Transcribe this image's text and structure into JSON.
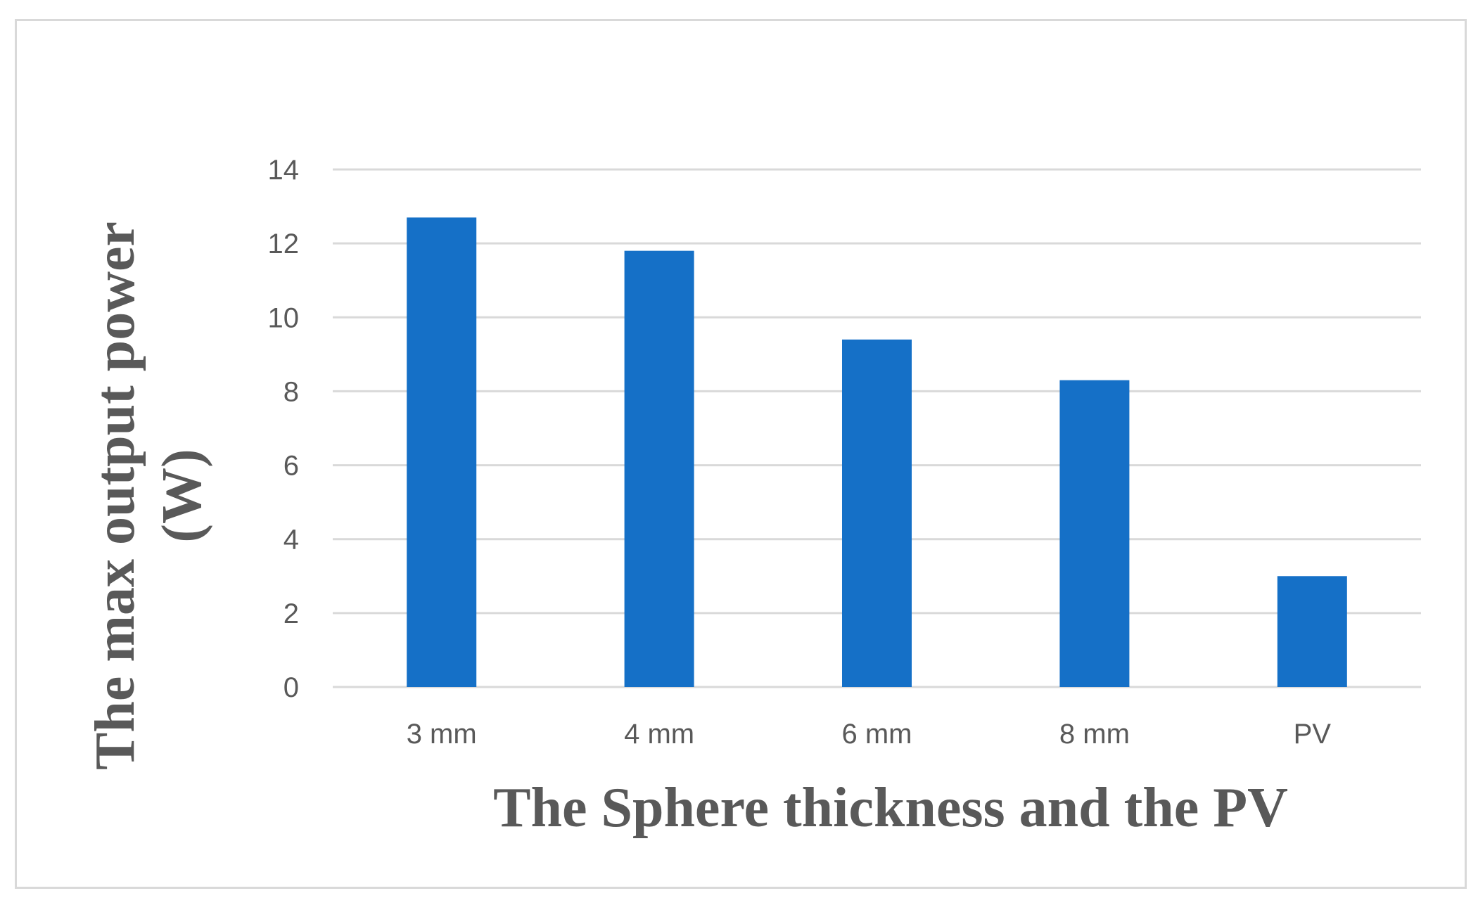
{
  "chart_data": {
    "type": "bar",
    "categories": [
      "3 mm",
      "4 mm",
      "6 mm",
      "8 mm",
      "PV"
    ],
    "values": [
      12.7,
      11.8,
      9.4,
      8.3,
      3.0
    ],
    "xlabel": "The Sphere thickness and the PV",
    "ylabel_lines": [
      "The max output power",
      "(W)"
    ],
    "ylim": [
      0,
      14
    ],
    "yticks": [
      0,
      2,
      4,
      6,
      8,
      10,
      12,
      14
    ],
    "grid": true,
    "legend": "none",
    "bar_color": "#1570c7"
  }
}
